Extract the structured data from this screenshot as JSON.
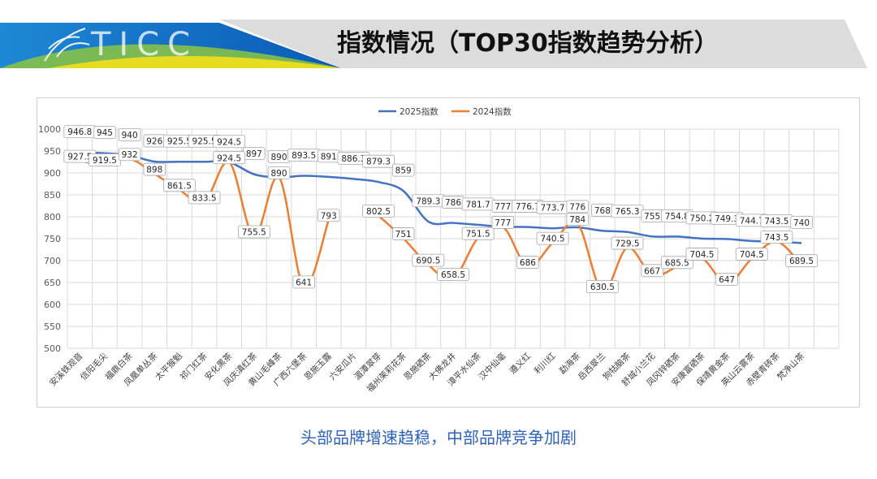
{
  "header": {
    "logo_text": "TICC",
    "title": "指数情况（TOP30指数趋势分析）"
  },
  "subtitle": "头部品牌增速趋稳，中部品牌竞争加剧",
  "colors": {
    "series_2025": "#4472c4",
    "series_2024": "#ed7d31",
    "subtitle": "#2d63bf",
    "header_band": "#dcdcdc",
    "header_accent_blue": "#1e73be",
    "header_accent_green": "#8cc63f",
    "header_accent_yellow": "#f2e11d"
  },
  "chart_data": {
    "type": "line",
    "legend_position": "top-center",
    "grid": true,
    "ylim": [
      500,
      1000
    ],
    "yticks": [
      500,
      550,
      600,
      650,
      700,
      750,
      800,
      850,
      900,
      950,
      1000
    ],
    "categories": [
      "安溪铁观音",
      "信阳毛尖",
      "福鼎白茶",
      "凤凰单丛茶",
      "太平猴魁",
      "祁门红茶",
      "安化黑茶",
      "凤庆滇红茶",
      "黄山毛峰茶",
      "广西六堡茶",
      "恩施玉露",
      "六安瓜片",
      "湄潭翠芽",
      "福州茉莉花茶",
      "恩施硒茶",
      "大佛龙井",
      "漳平水仙茶",
      "汉中仙毫",
      "遵义红",
      "利川红",
      "勐海茶",
      "岳西翠兰",
      "狗牯脑茶",
      "舒城小兰花",
      "凤冈锌硒茶",
      "安康富硒茶",
      "保靖黄金茶",
      "英山云雾茶",
      "赤壁青砖茶",
      "梵净山茶"
    ],
    "series": [
      {
        "name": "2025指数",
        "values": [
          946.8,
          945,
          940,
          926,
          925.5,
          925.5,
          924.5,
          897,
          890,
          893.5,
          891,
          886.3,
          879.3,
          859,
          789.3,
          786,
          781.7,
          777,
          776.7,
          773.7,
          776,
          768,
          765.3,
          755,
          754.8,
          750.2,
          749.3,
          744.7,
          743.5,
          740
        ]
      },
      {
        "name": "2024指数",
        "values": [
          927.5,
          919.5,
          932,
          898,
          861.5,
          833.5,
          924.5,
          755.5,
          890,
          641,
          793,
          null,
          802.5,
          751,
          690.5,
          658.5,
          751.5,
          777,
          686,
          740.5,
          784,
          630.5,
          729.5,
          667,
          685.5,
          704.5,
          647,
          704.5,
          743.5,
          689.5
        ]
      }
    ]
  }
}
